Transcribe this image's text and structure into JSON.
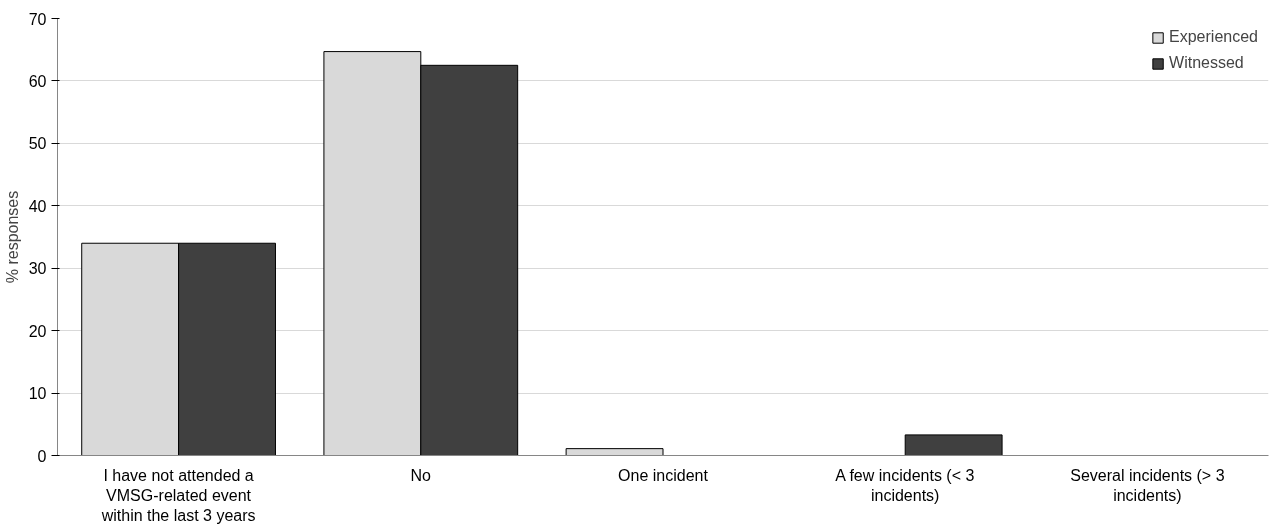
{
  "chart_data": {
    "type": "bar",
    "ylabel": "% responses",
    "categories": [
      "I have not attended a VMSG-related event within the last 3 years",
      "No",
      "One incident",
      "A few incidents (< 3 incidents)",
      "Several incidents (> 3 incidents)"
    ],
    "series": [
      {
        "name": "Experienced",
        "color": "#d9d9d9",
        "values": [
          34,
          64.7,
          1.1,
          0,
          0
        ]
      },
      {
        "name": "Witnessed",
        "color": "#404040",
        "values": [
          34,
          62.5,
          0,
          3.3,
          0
        ]
      }
    ],
    "ylim": [
      0,
      70
    ],
    "yticks": [
      0,
      10,
      20,
      30,
      40,
      50,
      60,
      70
    ],
    "grid": "y",
    "legend": "top right"
  }
}
